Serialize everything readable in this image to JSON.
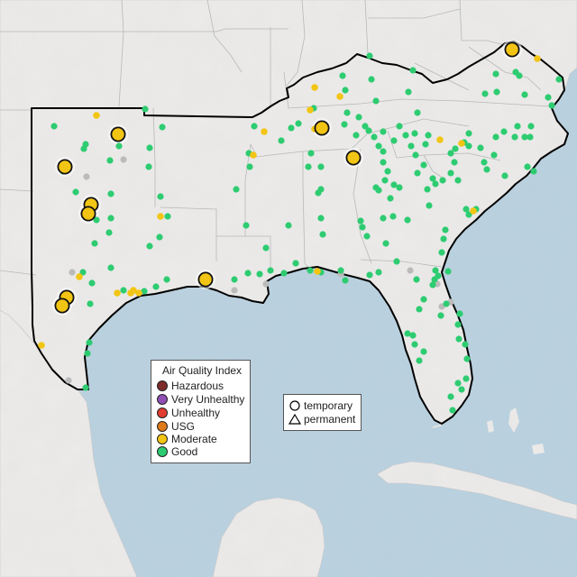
{
  "legend": {
    "title": "Air Quality Index",
    "categories": [
      {
        "label": "Hazardous",
        "color": "#7e2b2b"
      },
      {
        "label": "Very Unhealthy",
        "color": "#8f4fb5"
      },
      {
        "label": "Unhealthy",
        "color": "#e03c31"
      },
      {
        "label": "USG",
        "color": "#e07a18"
      },
      {
        "label": "Moderate",
        "color": "#f2c515"
      },
      {
        "label": "Good",
        "color": "#2ecc71"
      }
    ]
  },
  "monitor_types": [
    {
      "label": "temporary",
      "symbol": "circle"
    },
    {
      "label": "permanent",
      "symbol": "triangle"
    }
  ],
  "colors": {
    "land": "#ecebea",
    "water": "#b9d1e0",
    "boundary": "#000000",
    "no_data": "#bbbbbb"
  }
}
